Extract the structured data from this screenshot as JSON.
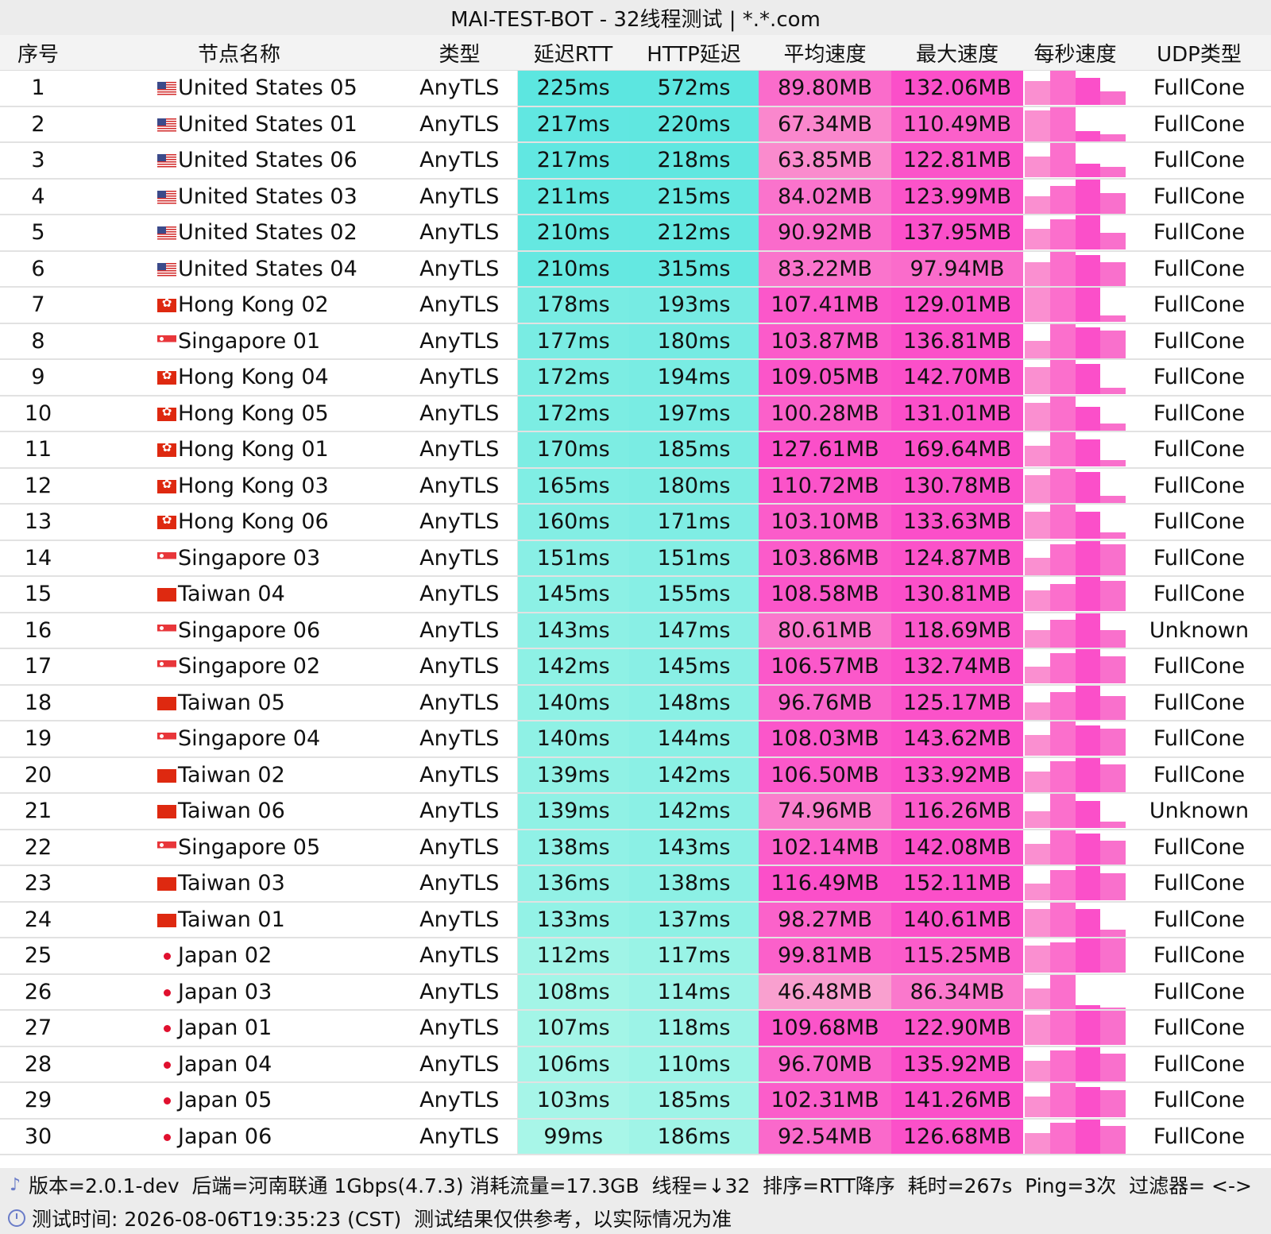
{
  "title": "MAI-TEST-BOT - 32线程测试 | *.*.com",
  "columns": [
    "序号",
    "节点名称",
    "类型",
    "延迟RTT",
    "HTTP延迟",
    "平均速度",
    "最大速度",
    "每秒速度",
    "UDP类型"
  ],
  "colors": {
    "rtt_high": "#5ce6e0",
    "rtt_low": "#a8f6e8",
    "speed_high": "#fb4fc9",
    "speed_low": "#f9a0cf"
  },
  "rows": [
    {
      "no": "1",
      "flag": "us",
      "name": "United States 05",
      "type": "AnyTLS",
      "rtt": "225ms",
      "http": "572ms",
      "avg": "89.80MB",
      "max": "132.06MB",
      "udp": "FullCone",
      "spark": [
        0.7,
        1,
        0.8,
        0.4
      ]
    },
    {
      "no": "2",
      "flag": "us",
      "name": "United States 01",
      "type": "AnyTLS",
      "rtt": "217ms",
      "http": "220ms",
      "avg": "67.34MB",
      "max": "110.49MB",
      "udp": "FullCone",
      "spark": [
        0.9,
        1,
        0.3,
        0.2
      ]
    },
    {
      "no": "3",
      "flag": "us",
      "name": "United States 06",
      "type": "AnyTLS",
      "rtt": "217ms",
      "http": "218ms",
      "avg": "63.85MB",
      "max": "122.81MB",
      "udp": "FullCone",
      "spark": [
        0.6,
        1,
        0.4,
        0.3
      ]
    },
    {
      "no": "4",
      "flag": "us",
      "name": "United States 03",
      "type": "AnyTLS",
      "rtt": "211ms",
      "http": "215ms",
      "avg": "84.02MB",
      "max": "123.99MB",
      "udp": "FullCone",
      "spark": [
        0.5,
        0.8,
        1,
        0.6
      ]
    },
    {
      "no": "5",
      "flag": "us",
      "name": "United States 02",
      "type": "AnyTLS",
      "rtt": "210ms",
      "http": "212ms",
      "avg": "90.92MB",
      "max": "137.95MB",
      "udp": "FullCone",
      "spark": [
        0.6,
        0.9,
        1,
        0.5
      ]
    },
    {
      "no": "6",
      "flag": "us",
      "name": "United States 04",
      "type": "AnyTLS",
      "rtt": "210ms",
      "http": "315ms",
      "avg": "83.22MB",
      "max": "97.94MB",
      "udp": "FullCone",
      "spark": [
        0.7,
        1,
        0.9,
        0.7
      ]
    },
    {
      "no": "7",
      "flag": "hk",
      "name": "Hong Kong 02",
      "type": "AnyTLS",
      "rtt": "178ms",
      "http": "193ms",
      "avg": "107.41MB",
      "max": "129.01MB",
      "udp": "FullCone",
      "spark": [
        1,
        1,
        1,
        0.2
      ]
    },
    {
      "no": "8",
      "flag": "sg",
      "name": "Singapore 01",
      "type": "AnyTLS",
      "rtt": "177ms",
      "http": "180ms",
      "avg": "103.87MB",
      "max": "136.81MB",
      "udp": "FullCone",
      "spark": [
        0.5,
        1,
        0.9,
        0.8
      ]
    },
    {
      "no": "9",
      "flag": "hk",
      "name": "Hong Kong 04",
      "type": "AnyTLS",
      "rtt": "172ms",
      "http": "194ms",
      "avg": "109.05MB",
      "max": "142.70MB",
      "udp": "FullCone",
      "spark": [
        0.8,
        1,
        0.9,
        0.2
      ]
    },
    {
      "no": "10",
      "flag": "hk",
      "name": "Hong Kong 05",
      "type": "AnyTLS",
      "rtt": "172ms",
      "http": "197ms",
      "avg": "100.28MB",
      "max": "131.01MB",
      "udp": "FullCone",
      "spark": [
        0.8,
        1,
        0.7,
        0.2
      ]
    },
    {
      "no": "11",
      "flag": "hk",
      "name": "Hong Kong 01",
      "type": "AnyTLS",
      "rtt": "170ms",
      "http": "185ms",
      "avg": "127.61MB",
      "max": "169.64MB",
      "udp": "FullCone",
      "spark": [
        0.6,
        1,
        0.8,
        0.2
      ]
    },
    {
      "no": "12",
      "flag": "hk",
      "name": "Hong Kong 03",
      "type": "AnyTLS",
      "rtt": "165ms",
      "http": "180ms",
      "avg": "110.72MB",
      "max": "130.78MB",
      "udp": "FullCone",
      "spark": [
        0.8,
        1,
        0.9,
        0.2
      ]
    },
    {
      "no": "13",
      "flag": "hk",
      "name": "Hong Kong 06",
      "type": "AnyTLS",
      "rtt": "160ms",
      "http": "171ms",
      "avg": "103.10MB",
      "max": "133.63MB",
      "udp": "FullCone",
      "spark": [
        0.8,
        1,
        0.8,
        0.2
      ]
    },
    {
      "no": "14",
      "flag": "sg",
      "name": "Singapore 03",
      "type": "AnyTLS",
      "rtt": "151ms",
      "http": "151ms",
      "avg": "103.86MB",
      "max": "124.87MB",
      "udp": "FullCone",
      "spark": [
        0.5,
        0.9,
        1,
        0.9
      ]
    },
    {
      "no": "15",
      "flag": "tw",
      "name": "Taiwan 04",
      "type": "AnyTLS",
      "rtt": "145ms",
      "http": "155ms",
      "avg": "108.58MB",
      "max": "130.81MB",
      "udp": "FullCone",
      "spark": [
        0.6,
        0.8,
        1,
        0.9
      ]
    },
    {
      "no": "16",
      "flag": "sg",
      "name": "Singapore 06",
      "type": "AnyTLS",
      "rtt": "143ms",
      "http": "147ms",
      "avg": "80.61MB",
      "max": "118.69MB",
      "udp": "Unknown",
      "spark": [
        0.5,
        0.8,
        1,
        0.5
      ]
    },
    {
      "no": "17",
      "flag": "sg",
      "name": "Singapore 02",
      "type": "AnyTLS",
      "rtt": "142ms",
      "http": "145ms",
      "avg": "106.57MB",
      "max": "132.74MB",
      "udp": "FullCone",
      "spark": [
        0.5,
        0.9,
        1,
        0.8
      ]
    },
    {
      "no": "18",
      "flag": "tw",
      "name": "Taiwan 05",
      "type": "AnyTLS",
      "rtt": "140ms",
      "http": "148ms",
      "avg": "96.76MB",
      "max": "125.17MB",
      "udp": "FullCone",
      "spark": [
        0.5,
        0.8,
        1,
        0.7
      ]
    },
    {
      "no": "19",
      "flag": "sg",
      "name": "Singapore 04",
      "type": "AnyTLS",
      "rtt": "140ms",
      "http": "144ms",
      "avg": "108.03MB",
      "max": "143.62MB",
      "udp": "FullCone",
      "spark": [
        0.6,
        1,
        0.9,
        0.8
      ]
    },
    {
      "no": "20",
      "flag": "tw",
      "name": "Taiwan 02",
      "type": "AnyTLS",
      "rtt": "139ms",
      "http": "142ms",
      "avg": "106.50MB",
      "max": "133.92MB",
      "udp": "FullCone",
      "spark": [
        0.6,
        0.9,
        1,
        0.8
      ]
    },
    {
      "no": "21",
      "flag": "tw",
      "name": "Taiwan 06",
      "type": "AnyTLS",
      "rtt": "139ms",
      "http": "142ms",
      "avg": "74.96MB",
      "max": "116.26MB",
      "udp": "Unknown",
      "spark": [
        0.5,
        1,
        0.8,
        0.2
      ]
    },
    {
      "no": "22",
      "flag": "sg",
      "name": "Singapore 05",
      "type": "AnyTLS",
      "rtt": "138ms",
      "http": "143ms",
      "avg": "102.14MB",
      "max": "142.08MB",
      "udp": "FullCone",
      "spark": [
        0.6,
        1,
        0.9,
        0.7
      ]
    },
    {
      "no": "23",
      "flag": "tw",
      "name": "Taiwan 03",
      "type": "AnyTLS",
      "rtt": "136ms",
      "http": "138ms",
      "avg": "116.49MB",
      "max": "152.11MB",
      "udp": "FullCone",
      "spark": [
        0.5,
        0.9,
        1,
        0.8
      ]
    },
    {
      "no": "24",
      "flag": "tw",
      "name": "Taiwan 01",
      "type": "AnyTLS",
      "rtt": "133ms",
      "http": "137ms",
      "avg": "98.27MB",
      "max": "140.61MB",
      "udp": "FullCone",
      "spark": [
        0.8,
        1,
        0.8,
        0.2
      ]
    },
    {
      "no": "25",
      "flag": "jp",
      "name": "Japan 02",
      "type": "AnyTLS",
      "rtt": "112ms",
      "http": "117ms",
      "avg": "99.81MB",
      "max": "115.25MB",
      "udp": "FullCone",
      "spark": [
        0.8,
        0.9,
        1,
        1
      ]
    },
    {
      "no": "26",
      "flag": "jp",
      "name": "Japan 03",
      "type": "AnyTLS",
      "rtt": "108ms",
      "http": "114ms",
      "avg": "46.48MB",
      "max": "86.34MB",
      "udp": "FullCone",
      "spark": [
        0.6,
        1,
        0.1,
        0.05
      ]
    },
    {
      "no": "27",
      "flag": "jp",
      "name": "Japan 01",
      "type": "AnyTLS",
      "rtt": "107ms",
      "http": "118ms",
      "avg": "109.68MB",
      "max": "122.90MB",
      "udp": "FullCone",
      "spark": [
        0.9,
        1,
        1,
        1
      ]
    },
    {
      "no": "28",
      "flag": "jp",
      "name": "Japan 04",
      "type": "AnyTLS",
      "rtt": "106ms",
      "http": "110ms",
      "avg": "96.70MB",
      "max": "135.92MB",
      "udp": "FullCone",
      "spark": [
        0.6,
        0.9,
        1,
        0.8
      ]
    },
    {
      "no": "29",
      "flag": "jp",
      "name": "Japan 05",
      "type": "AnyTLS",
      "rtt": "103ms",
      "http": "185ms",
      "avg": "102.31MB",
      "max": "141.26MB",
      "udp": "FullCone",
      "spark": [
        0.6,
        1,
        0.9,
        0.8
      ]
    },
    {
      "no": "30",
      "flag": "jp",
      "name": "Japan 06",
      "type": "AnyTLS",
      "rtt": "99ms",
      "http": "186ms",
      "avg": "92.54MB",
      "max": "126.68MB",
      "udp": "FullCone",
      "spark": [
        0.6,
        0.9,
        1,
        0.8
      ]
    }
  ],
  "footer": {
    "line1_icon": "tuning-fork-icon",
    "line1": "版本=2.0.1-dev  后端=河南联通 1Gbps(4.7.3) 消耗流量=17.3GB  线程=↓32  排序=RTT降序  耗时=267s  Ping=3次  过滤器= <->",
    "line2_icon": "clock-icon",
    "line2": "测试时间: 2026-08-06T19:35:23 (CST)  测试结果仅供参考，以实际情况为准"
  }
}
